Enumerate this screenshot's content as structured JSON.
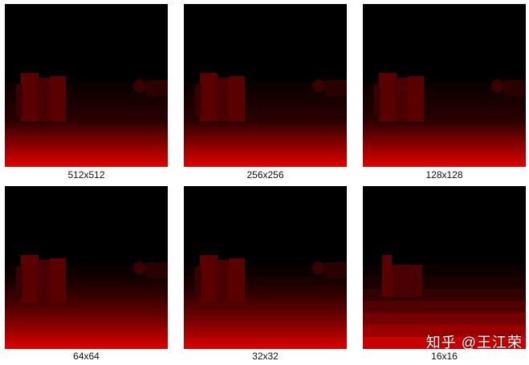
{
  "tiles": [
    {
      "label": "512x512",
      "steps": 0
    },
    {
      "label": "256x256",
      "steps": 0
    },
    {
      "label": "128x128",
      "steps": 0
    },
    {
      "label": "64x64",
      "steps": 64
    },
    {
      "label": "32x32",
      "steps": 32
    },
    {
      "label": "16x16",
      "steps": 16
    }
  ],
  "watermark": "知乎 @王江荣",
  "colors": {
    "background": "#000000",
    "floor_dark": "#2a0000",
    "floor_bright": "#e00000",
    "object": "#5a0000"
  }
}
